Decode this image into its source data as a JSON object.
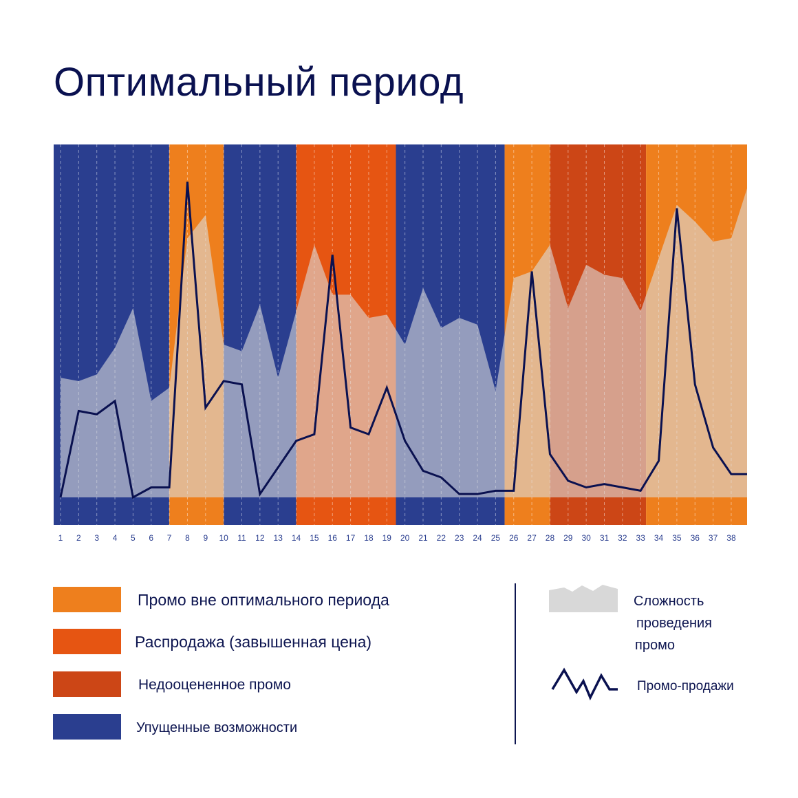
{
  "title": "Оптимальный период",
  "colors": {
    "missed": "#2a3e8f",
    "promo_outside": "#ee7f1d",
    "sale": "#e65512",
    "undervalued": "#cc4616",
    "complexity_fill": "#d8d8d8",
    "sales_line": "#0a1150"
  },
  "chart_data": {
    "type": "area",
    "x": [
      1,
      2,
      3,
      4,
      5,
      6,
      7,
      8,
      9,
      10,
      11,
      12,
      13,
      14,
      15,
      16,
      17,
      18,
      19,
      20,
      21,
      22,
      23,
      24,
      25,
      26,
      27,
      28,
      29,
      30,
      31,
      32,
      33,
      34,
      35,
      36,
      37,
      38
    ],
    "x_tick_labels": [
      "1",
      "2",
      "3",
      "4",
      "5",
      "6",
      "7",
      "8",
      "9",
      "10",
      "11",
      "12",
      "13",
      "14",
      "15",
      "16",
      "17",
      "18",
      "19",
      "20",
      "21",
      "22",
      "23",
      "24",
      "25",
      "26",
      "27",
      "28",
      "29",
      "30",
      "31",
      "32",
      "33",
      "34",
      "35",
      "36",
      "37",
      "38"
    ],
    "ylim": [
      0,
      100
    ],
    "grid": "vertical dashed",
    "bands": [
      {
        "category": "missed",
        "from": 1,
        "to": 7
      },
      {
        "category": "promo_outside",
        "from": 7,
        "to": 10
      },
      {
        "category": "missed",
        "from": 10,
        "to": 14
      },
      {
        "category": "sale",
        "from": 14,
        "to": 19.5
      },
      {
        "category": "missed",
        "from": 19.5,
        "to": 25.5
      },
      {
        "category": "promo_outside",
        "from": 25.5,
        "to": 28
      },
      {
        "category": "undervalued",
        "from": 28,
        "to": 33.3
      },
      {
        "category": "promo_outside",
        "from": 33.3,
        "to": 39
      }
    ],
    "series": [
      {
        "name": "Сложность проведения промо",
        "style": "area",
        "values": [
          36,
          35,
          37,
          45,
          57,
          29,
          33,
          78,
          85,
          46,
          44,
          58,
          36,
          56,
          76,
          61,
          61,
          54,
          55,
          46,
          63,
          51,
          54,
          52,
          32,
          66,
          68,
          76,
          57,
          70,
          67,
          66,
          56,
          72,
          88,
          83,
          77,
          78
        ]
      },
      {
        "name": "Промо-продажи",
        "style": "line",
        "values": [
          0,
          26,
          25,
          29,
          0,
          3,
          3,
          95,
          27,
          35,
          34,
          1,
          9,
          17,
          19,
          73,
          21,
          19,
          33,
          17,
          8,
          6,
          1,
          1,
          2,
          2,
          68,
          13,
          5,
          3,
          4,
          3,
          2,
          11,
          87,
          34,
          15,
          7
        ]
      }
    ],
    "legend": {
      "bands": [
        {
          "key": "promo_outside",
          "label": "Промо вне оптимального периода"
        },
        {
          "key": "sale",
          "label": "Распродажа (завышенная цена)"
        },
        {
          "key": "undervalued",
          "label": "Недооцененное промо"
        },
        {
          "key": "missed",
          "label": "Упущенные возможности"
        }
      ],
      "series": [
        {
          "key": "complexity",
          "lines": [
            "Сложность",
            "проведения",
            "промо"
          ]
        },
        {
          "key": "sales",
          "label": "Промо-продажи"
        }
      ]
    }
  }
}
